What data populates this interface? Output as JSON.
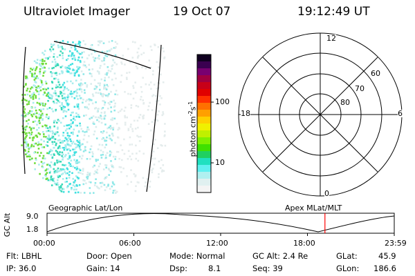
{
  "header": {
    "instrument": "Ultraviolet Imager",
    "date": "19 Oct 07",
    "time": "19:12:49 UT"
  },
  "colorbar": {
    "unit_label_main": "photon cm",
    "unit_sup1": "-2",
    "unit_s": "s",
    "unit_sup2": "-1",
    "tick_100": "100",
    "tick_10": "10",
    "colors": [
      "#100020",
      "#3a0050",
      "#780070",
      "#a00040",
      "#c80018",
      "#e00000",
      "#ff3000",
      "#ff7000",
      "#ffa000",
      "#ffd000",
      "#f0f000",
      "#c0f000",
      "#80f000",
      "#40e000",
      "#20d060",
      "#20e0c0",
      "#60f0f0",
      "#b0f0f0",
      "#e0f0f0",
      "#f4f4f4"
    ]
  },
  "polar": {
    "label_12": "12",
    "label_18": "18",
    "label_6": "6",
    "label_0": "0",
    "lat_60": "60",
    "lat_70": "70",
    "lat_80": "80"
  },
  "timeline": {
    "left_label": "Geographic Lat/Lon",
    "right_label": "Apex MLat/MLT",
    "axis_label": "GC Alt",
    "y_max": "9.0",
    "y_min": "1.8",
    "ticks": [
      "00:00",
      "06:00",
      "12:00",
      "18:00",
      "23:59"
    ],
    "current_time_hours": 19.21,
    "marker_color": "#ff0000"
  },
  "footer": {
    "filter": "Flt: LBHL",
    "ip": "IP: 36.0",
    "door": "Door: Open",
    "gain": "Gain: 14",
    "mode": "Mode: Normal",
    "dsp_label": "Dsp:",
    "dsp_value": "8.1",
    "gc_alt": "GC Alt: 2.4 Re",
    "seq": "Seq: 39",
    "glat_label": "GLat:",
    "glat_value": "45.9",
    "glon_label": "GLon:",
    "glon_value": "186.6"
  }
}
